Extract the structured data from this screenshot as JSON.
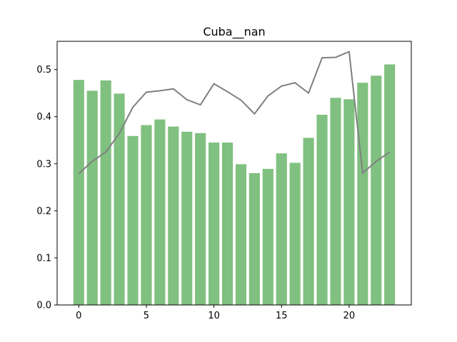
{
  "chart_data": {
    "type": "bar",
    "title": "Cuba__nan",
    "xlabel": "",
    "ylabel": "",
    "x": [
      0,
      1,
      2,
      3,
      4,
      5,
      6,
      7,
      8,
      9,
      10,
      11,
      12,
      13,
      14,
      15,
      16,
      17,
      18,
      19,
      20,
      21,
      22,
      23
    ],
    "xlim": [
      -1.6,
      24.6
    ],
    "ylim": [
      0,
      0.56
    ],
    "xticks": [
      0,
      5,
      10,
      15,
      20
    ],
    "xtick_labels": [
      "0",
      "5",
      "10",
      "15",
      "20"
    ],
    "yticks": [
      0.0,
      0.1,
      0.2,
      0.3,
      0.4,
      0.5
    ],
    "ytick_labels": [
      "0.0",
      "0.1",
      "0.2",
      "0.3",
      "0.4",
      "0.5"
    ],
    "grid": false,
    "series": [
      {
        "type": "bar",
        "color": "#80c080",
        "values": [
          0.478,
          0.455,
          0.477,
          0.449,
          0.359,
          0.382,
          0.394,
          0.379,
          0.368,
          0.365,
          0.345,
          0.345,
          0.299,
          0.28,
          0.289,
          0.322,
          0.302,
          0.355,
          0.404,
          0.44,
          0.437,
          0.472,
          0.487,
          0.511
        ]
      },
      {
        "type": "line",
        "color": "#808080",
        "values": [
          0.279,
          0.305,
          0.325,
          0.364,
          0.42,
          0.452,
          0.455,
          0.459,
          0.436,
          0.425,
          0.47,
          0.453,
          0.435,
          0.406,
          0.444,
          0.465,
          0.472,
          0.45,
          0.525,
          0.526,
          0.538,
          0.28,
          0.305,
          0.325
        ]
      }
    ]
  }
}
